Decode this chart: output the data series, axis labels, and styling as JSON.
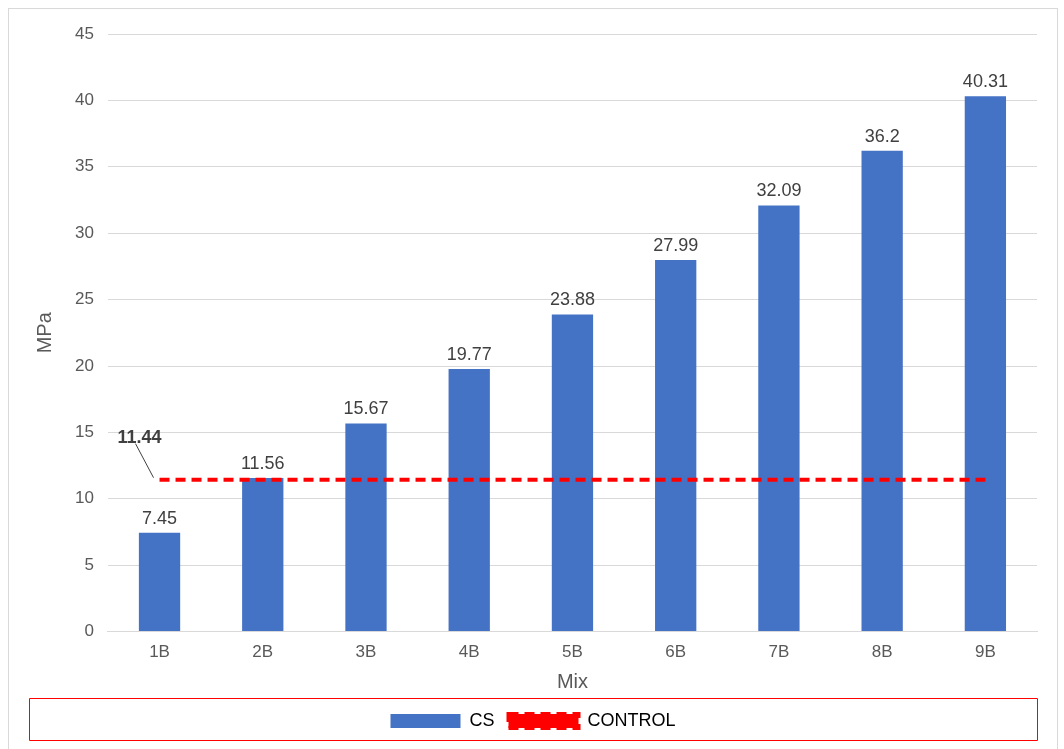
{
  "chart_data": {
    "type": "bar",
    "xlabel": "Mix",
    "ylabel": "MPa",
    "categories": [
      "1B",
      "2B",
      "3B",
      "4B",
      "5B",
      "6B",
      "7B",
      "8B",
      "9B"
    ],
    "series": [
      {
        "name": "CS",
        "color": "#4472c4",
        "values": [
          7.45,
          11.56,
          15.67,
          19.77,
          23.88,
          27.99,
          32.09,
          36.2,
          40.31
        ],
        "value_labels": [
          "7.45",
          "11.56",
          "15.67",
          "19.77",
          "23.88",
          "27.99",
          "32.09",
          "36.2",
          "40.31"
        ]
      },
      {
        "name": "CONTROL",
        "type": "line",
        "color": "#ff0000",
        "line_style": "dashed",
        "marker": "none",
        "values": [
          11.44,
          11.44,
          11.44,
          11.44,
          11.44,
          11.44,
          11.44,
          11.44,
          11.44
        ],
        "value_labels": [
          "11.44",
          null,
          null,
          null,
          null,
          null,
          null,
          null,
          null
        ]
      }
    ],
    "ylim": [
      0,
      45
    ],
    "yticks": [
      0,
      5,
      10,
      15,
      20,
      25,
      30,
      35,
      40,
      45
    ],
    "grid": "y",
    "legend": "bottom"
  }
}
